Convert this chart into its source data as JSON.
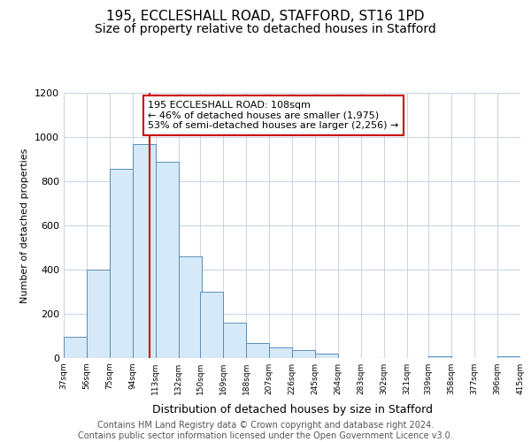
{
  "title_line1": "195, ECCLESHALL ROAD, STAFFORD, ST16 1PD",
  "title_line2": "Size of property relative to detached houses in Stafford",
  "xlabel": "Distribution of detached houses by size in Stafford",
  "ylabel": "Number of detached properties",
  "bar_left_edges": [
    37,
    56,
    75,
    94,
    113,
    132,
    150,
    169,
    188,
    207,
    226,
    245,
    264,
    283,
    302,
    321,
    339,
    358,
    377,
    396
  ],
  "bar_heights": [
    95,
    400,
    855,
    970,
    890,
    460,
    300,
    160,
    70,
    50,
    35,
    20,
    0,
    0,
    0,
    0,
    10,
    0,
    0,
    10
  ],
  "bin_width": 19,
  "bar_color": "#d6e9f8",
  "bar_edge_color": "#5b8db8",
  "vline_x": 108,
  "vline_color": "#cc0000",
  "annotation_line1": "195 ECCLESHALL ROAD: 108sqm",
  "annotation_line2": "← 46% of detached houses are smaller (1,975)",
  "annotation_line3": "53% of semi-detached houses are larger (2,256) →",
  "annotation_box_color": "#ffffff",
  "annotation_box_edge_color": "#cc0000",
  "ylim": [
    0,
    1200
  ],
  "xlim": [
    37,
    415
  ],
  "tick_labels": [
    "37sqm",
    "56sqm",
    "75sqm",
    "94sqm",
    "113sqm",
    "132sqm",
    "150sqm",
    "169sqm",
    "188sqm",
    "207sqm",
    "226sqm",
    "245sqm",
    "264sqm",
    "283sqm",
    "302sqm",
    "321sqm",
    "339sqm",
    "358sqm",
    "377sqm",
    "396sqm",
    "415sqm"
  ],
  "tick_positions": [
    37,
    56,
    75,
    94,
    113,
    132,
    150,
    169,
    188,
    207,
    226,
    245,
    264,
    283,
    302,
    321,
    339,
    358,
    377,
    396,
    415
  ],
  "footer_line1": "Contains HM Land Registry data © Crown copyright and database right 2024.",
  "footer_line2": "Contains public sector information licensed under the Open Government Licence v3.0.",
  "background_color": "#ffffff",
  "grid_color": "#c8d8e8",
  "title1_fontsize": 11,
  "title2_fontsize": 10,
  "xlabel_fontsize": 9,
  "ylabel_fontsize": 8,
  "footer_fontsize": 7,
  "annotation_fontsize": 8,
  "ytick_fontsize": 8,
  "xtick_fontsize": 6.5
}
